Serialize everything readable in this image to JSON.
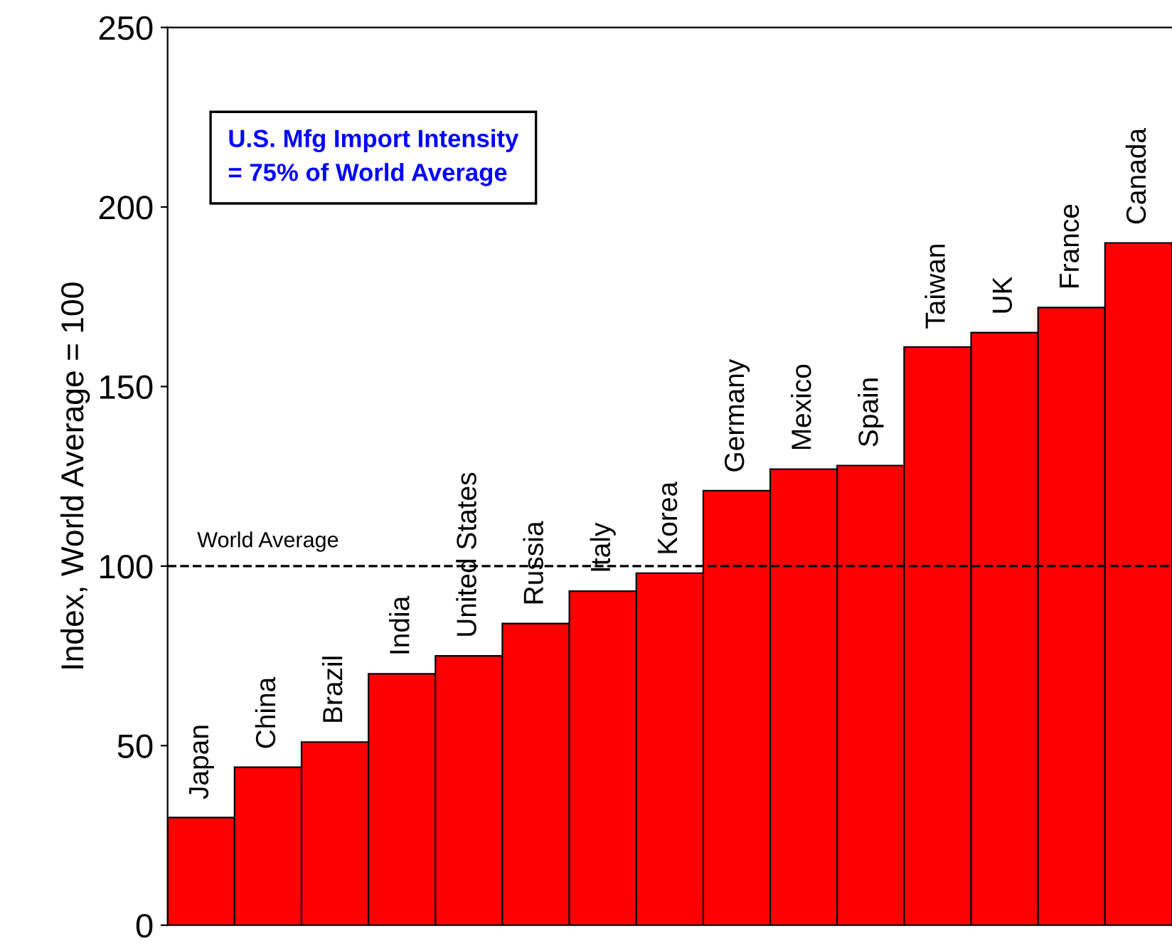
{
  "chart_data": {
    "type": "bar",
    "categories": [
      "Japan",
      "China",
      "Brazil",
      "India",
      "United States",
      "Russia",
      "Italy",
      "Korea",
      "Germany",
      "Mexico",
      "Spain",
      "Taiwan",
      "UK",
      "France",
      "Canada"
    ],
    "values": [
      30,
      44,
      51,
      70,
      75,
      84,
      93,
      98,
      121,
      127,
      128,
      161,
      165,
      172,
      190
    ],
    "color": "#ff0000",
    "ylabel": "Index, World Average = 100",
    "ylim": [
      0,
      250
    ],
    "yticks": [
      0,
      50,
      100,
      150,
      200,
      250
    ],
    "ref_lines": [
      {
        "axis": "y",
        "value": 100,
        "label": "World Average",
        "color": "#000000",
        "line_style": "dashed"
      }
    ],
    "annotations": [
      "U.S. Mfg Import Intensity\n= 75% of World Average"
    ],
    "tick_labels": "y",
    "grid": false,
    "legend": false
  }
}
